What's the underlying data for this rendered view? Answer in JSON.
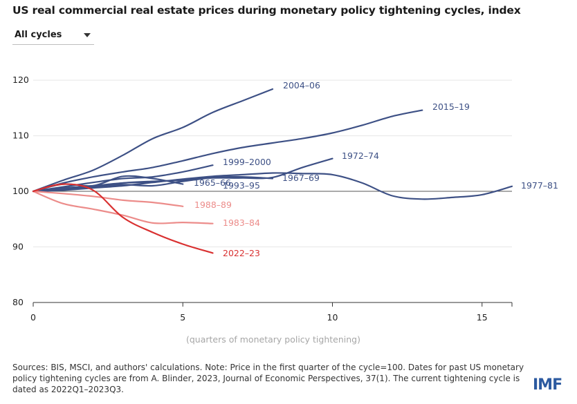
{
  "title": "US real commercial real estate prices during monetary policy tightening cycles, index",
  "dropdown": {
    "selected": "All cycles",
    "icon": "chevron-down-icon"
  },
  "footnote": "Sources: BIS, MSCI, and authors' calculations. Note: Price in the first quarter of the cycle=100. Dates for past US monetary policy tightening cycles are from A. Blinder, 2023, Journal of Economic Perspectives, 37(1). The current tightening cycle is dated as 2022Q1–2023Q3.",
  "logo_text": "IMF",
  "colors": {
    "past": "#3d5085",
    "highlight": "#d93030",
    "pink": "#ec8c8a",
    "reference": "#555555",
    "grid": "#e6e6e6"
  },
  "chart_data": {
    "type": "line",
    "title": "US real commercial real estate prices during monetary policy tightening cycles, index",
    "xlabel": "(quarters of monetary policy tightening)",
    "ylabel": "",
    "xlim": [
      0,
      16
    ],
    "ylim": [
      80,
      122
    ],
    "xticks": [
      0,
      5,
      10,
      15
    ],
    "yticks": [
      80,
      90,
      100,
      110,
      120
    ],
    "reference_line": 100,
    "grid": "horizontal",
    "series": [
      {
        "name": "2004–06",
        "color_key": "past",
        "x": [
          0,
          1,
          2,
          3,
          4,
          5,
          6,
          7,
          8
        ],
        "y": [
          100,
          102.0,
          103.8,
          106.5,
          109.5,
          111.5,
          114.2,
          116.3,
          118.4
        ]
      },
      {
        "name": "2015–19",
        "color_key": "past",
        "x": [
          0,
          1,
          2,
          3,
          4,
          5,
          6,
          7,
          8,
          9,
          10,
          11,
          12,
          13
        ],
        "y": [
          100,
          101.5,
          102.6,
          103.5,
          104.3,
          105.5,
          106.8,
          107.9,
          108.7,
          109.5,
          110.5,
          111.9,
          113.5,
          114.6
        ]
      },
      {
        "name": "1972–74",
        "color_key": "past",
        "x": [
          0,
          1,
          2,
          3,
          4,
          5,
          6,
          7,
          8,
          9,
          10
        ],
        "y": [
          100,
          100.6,
          101.0,
          101.5,
          101.7,
          102.1,
          102.4,
          102.4,
          102.5,
          104.3,
          105.9
        ]
      },
      {
        "name": "1999–2000",
        "color_key": "past",
        "x": [
          0,
          1,
          2,
          3,
          4,
          5,
          6
        ],
        "y": [
          100,
          100.8,
          101.6,
          102.3,
          102.6,
          103.5,
          104.7
        ]
      },
      {
        "name": "1967–69",
        "color_key": "past",
        "x": [
          0,
          1,
          2,
          3,
          4,
          5,
          6,
          7,
          8
        ],
        "y": [
          100,
          100.4,
          100.8,
          101.5,
          101.8,
          102.0,
          102.5,
          102.6,
          102.3
        ]
      },
      {
        "name": "1965–66",
        "color_key": "past",
        "x": [
          0,
          1,
          2,
          3,
          4,
          5
        ],
        "y": [
          100,
          101.3,
          101.0,
          102.7,
          102.3,
          101.3
        ]
      },
      {
        "name": "1993–95",
        "color_key": "past",
        "x": [
          0,
          1,
          2,
          3,
          4,
          5,
          6
        ],
        "y": [
          100,
          100.5,
          100.8,
          101.2,
          101.0,
          101.8,
          102.5
        ]
      },
      {
        "name": "1977–81",
        "color_key": "past",
        "x": [
          0,
          1,
          2,
          3,
          4,
          5,
          6,
          7,
          8,
          9,
          10,
          11,
          12,
          13,
          14,
          15,
          16
        ],
        "y": [
          100,
          100.2,
          100.6,
          101.0,
          101.6,
          102.2,
          102.7,
          103.0,
          103.3,
          103.2,
          103.0,
          101.5,
          99.2,
          98.6,
          98.9,
          99.4,
          100.9
        ]
      },
      {
        "name": "1988–89",
        "color_key": "pink",
        "x": [
          0,
          1,
          2,
          3,
          4,
          5
        ],
        "y": [
          100,
          99.6,
          99.1,
          98.4,
          98.0,
          97.3
        ]
      },
      {
        "name": "1983–84",
        "color_key": "pink",
        "x": [
          0,
          1,
          2,
          3,
          4,
          5,
          6
        ],
        "y": [
          100,
          97.8,
          96.8,
          95.7,
          94.3,
          94.4,
          94.2
        ]
      },
      {
        "name": "2022–23",
        "color_key": "highlight",
        "x": [
          0,
          1,
          2,
          3,
          4,
          5,
          6
        ],
        "y": [
          100,
          101.3,
          100.2,
          95.3,
          92.6,
          90.5,
          88.9
        ]
      }
    ],
    "series_labels": [
      {
        "text": "2004–06",
        "color_key": "past"
      },
      {
        "text": "2015–19",
        "color_key": "past"
      },
      {
        "text": "1972–74",
        "color_key": "past"
      },
      {
        "text": "1999–2000",
        "color_key": "past"
      },
      {
        "text": "1967–69",
        "color_key": "past"
      },
      {
        "text": "1965–66",
        "color_key": "past"
      },
      {
        "text": "1993–95",
        "color_key": "past"
      },
      {
        "text": "1977–81",
        "color_key": "past"
      },
      {
        "text": "1988–89",
        "color_key": "pink"
      },
      {
        "text": "1983–84",
        "color_key": "pink"
      },
      {
        "text": "2022–23",
        "color_key": "highlight"
      }
    ]
  }
}
